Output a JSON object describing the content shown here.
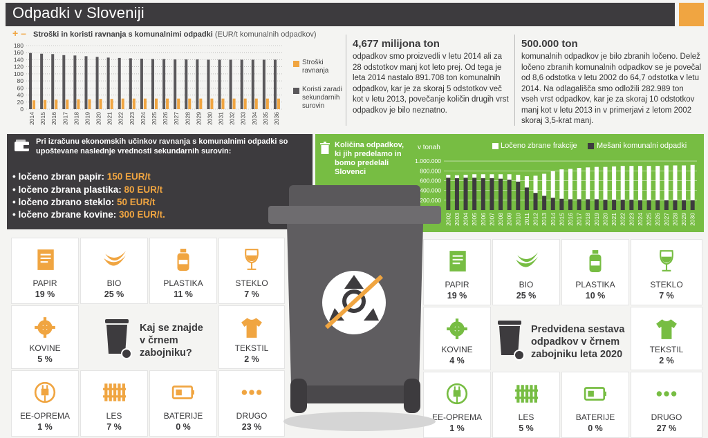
{
  "page_title": "Odpadki v Sloveniji",
  "costs_chart": {
    "title": "Stroški in koristi ravnanja s komunalnimi odpadki",
    "unit": "(EUR/t komunalnih odpadkov)",
    "legend": {
      "costs": "Stroški ravnanja",
      "benefits": "Koristi zaradi sekundarnih surovin"
    }
  },
  "stat1": {
    "headline": "4,677 milijona ton",
    "text": "odpadkov smo proizvedli v letu 2014 ali za 28 odstotkov manj kot leto prej. Od tega je leta 2014 nastalo 891.708 ton komunalnih odpadkov, kar je za skoraj 5 odstotkov več kot v letu 2013, povečanje količin drugih vrst odpadkov je bilo neznatno."
  },
  "stat2": {
    "headline": "500.000 ton",
    "text": "komunalnih odpadkov je bilo zbranih ločeno. Delež ločeno zbranih komunalnih odpadkov se je povečal od 8,6 odstotka v letu 2002 do 64,7 odstotka v letu 2014. Na odlagališča smo odložili 282.989 ton vseh vrst odpadkov, kar je za skoraj 10 odstotkov manj kot v letu 2013 in v primerjavi z letom 2002 skoraj 3,5-krat manj."
  },
  "secondary_values": {
    "intro": "Pri izračunu ekonomskih učinkov ravnanja s komunalnimi odpadki so upoštevane naslednje vrednosti sekundarnih surovin:",
    "items": [
      {
        "label": "ločeno zbran papir:",
        "value": "150 EUR/t"
      },
      {
        "label": "ločeno zbrana plastika:",
        "value": "80 EUR/t"
      },
      {
        "label": "ločeno zbrano steklo:",
        "value": "50 EUR/t"
      },
      {
        "label": "ločeno zbrane kovine:",
        "value": "300 EUR/t."
      }
    ]
  },
  "waste_chart": {
    "title": "Količina odpadkov, ki jih predelamo in bomo predelali Slovenci",
    "unit": "v tonah",
    "legend": {
      "separate": "Ločeno zbrane frakcije",
      "mixed": "Mešani komunalni odpadki"
    }
  },
  "chart_data": [
    {
      "type": "bar",
      "title": "Stroški in koristi ravnanja s komunalnimi odpadki",
      "ylim": [
        0,
        180
      ],
      "yticks": [
        0,
        20,
        40,
        60,
        80,
        100,
        120,
        140,
        160,
        180
      ],
      "categories": [
        "2014",
        "2015",
        "2016",
        "2017",
        "2018",
        "2019",
        "2020",
        "2021",
        "2022",
        "2023",
        "2024",
        "2025",
        "2026",
        "2027",
        "2028",
        "2029",
        "2030",
        "2031",
        "2032",
        "2033",
        "2034",
        "2035",
        "2036"
      ],
      "series": [
        {
          "name": "Stroški ravnanja",
          "color": "#f0a541",
          "values": [
            25,
            26,
            27,
            27,
            28,
            28,
            29,
            29,
            30,
            30,
            30,
            30,
            30,
            30,
            30,
            30,
            30,
            30,
            30,
            30,
            30,
            30,
            30
          ]
        },
        {
          "name": "Koristi zaradi sekundarnih surovin",
          "color": "#5a585b",
          "values": [
            159,
            157,
            156,
            153,
            152,
            150,
            148,
            146,
            145,
            144,
            143,
            142,
            142,
            141,
            141,
            141,
            140,
            140,
            140,
            140,
            140,
            140,
            140
          ]
        }
      ]
    },
    {
      "type": "bar",
      "title": "Količina odpadkov, ki jih predelamo in bomo predelali Slovenci",
      "ylabel": "v tonah",
      "yticks": [
        "200.000",
        "400.000",
        "600.000",
        "800.000",
        "1.000.000"
      ],
      "ylim": [
        0,
        1100000
      ],
      "categories": [
        "2002",
        "2003",
        "2004",
        "2005",
        "2006",
        "2007",
        "2008",
        "2009",
        "2010",
        "2011",
        "2012",
        "2013",
        "2014",
        "2015",
        "2016",
        "2017",
        "2018",
        "2019",
        "2020",
        "2021",
        "2022",
        "2023",
        "2024",
        "2025",
        "2026",
        "2027",
        "2028",
        "2029",
        "2030"
      ],
      "series": [
        {
          "name": "Ločeno zbrane frakcije",
          "color": "#ffffff",
          "values": [
            60000,
            60000,
            60000,
            70000,
            80000,
            80000,
            90000,
            110000,
            140000,
            230000,
            350000,
            450000,
            540000,
            600000,
            620000,
            640000,
            650000,
            660000,
            670000,
            680000,
            690000,
            690000,
            700000,
            700000,
            700000,
            710000,
            710000,
            710000,
            720000
          ]
        },
        {
          "name": "Mešani komunalni odpadki",
          "color": "#3d3b3e",
          "values": [
            660000,
            650000,
            660000,
            660000,
            650000,
            650000,
            640000,
            620000,
            580000,
            460000,
            350000,
            290000,
            250000,
            230000,
            220000,
            220000,
            220000,
            220000,
            210000,
            210000,
            210000,
            210000,
            200000,
            200000,
            200000,
            200000,
            200000,
            200000,
            200000
          ]
        }
      ]
    }
  ],
  "bin_question": "Kaj se znajde v črnem zabojniku?",
  "bin_forecast": "Predvidena sestava odpadkov v črnem zabojniku leta 2020",
  "left_tiles": [
    {
      "name": "PAPIR",
      "pct": "19 %",
      "icon": "paper-icon"
    },
    {
      "name": "BIO",
      "pct": "25 %",
      "icon": "banana-icon"
    },
    {
      "name": "PLASTIKA",
      "pct": "11 %",
      "icon": "bottle-icon"
    },
    {
      "name": "STEKLO",
      "pct": "7 %",
      "icon": "wine-glass-icon"
    },
    {
      "name": "KOVINE",
      "pct": "5 %",
      "icon": "gear-icon"
    },
    {
      "name": "TEKSTIL",
      "pct": "2 %",
      "icon": "tshirt-icon"
    },
    {
      "name": "EE-OPREMA",
      "pct": "1 %",
      "icon": "plug-icon"
    },
    {
      "name": "LES",
      "pct": "7 %",
      "icon": "wood-fence-icon"
    },
    {
      "name": "BATERIJE",
      "pct": "0 %",
      "icon": "battery-icon"
    },
    {
      "name": "DRUGO",
      "pct": "23 %",
      "icon": "dots-icon"
    }
  ],
  "right_tiles": [
    {
      "name": "PAPIR",
      "pct": "19 %",
      "icon": "paper-icon"
    },
    {
      "name": "BIO",
      "pct": "25 %",
      "icon": "banana-icon"
    },
    {
      "name": "PLASTIKA",
      "pct": "10 %",
      "icon": "bottle-icon"
    },
    {
      "name": "STEKLO",
      "pct": "7 %",
      "icon": "wine-glass-icon"
    },
    {
      "name": "KOVINE",
      "pct": "4 %",
      "icon": "gear-icon"
    },
    {
      "name": "TEKSTIL",
      "pct": "2 %",
      "icon": "tshirt-icon"
    },
    {
      "name": "EE-OPREMA",
      "pct": "1 %",
      "icon": "plug-icon"
    },
    {
      "name": "LES",
      "pct": "5 %",
      "icon": "wood-fence-icon"
    },
    {
      "name": "BATERIJE",
      "pct": "0 %",
      "icon": "battery-icon"
    },
    {
      "name": "DRUGO",
      "pct": "27 %",
      "icon": "dots-icon"
    }
  ],
  "colors": {
    "accent": "#f0a541",
    "dark": "#3d3b3e",
    "green": "#77bd43"
  }
}
